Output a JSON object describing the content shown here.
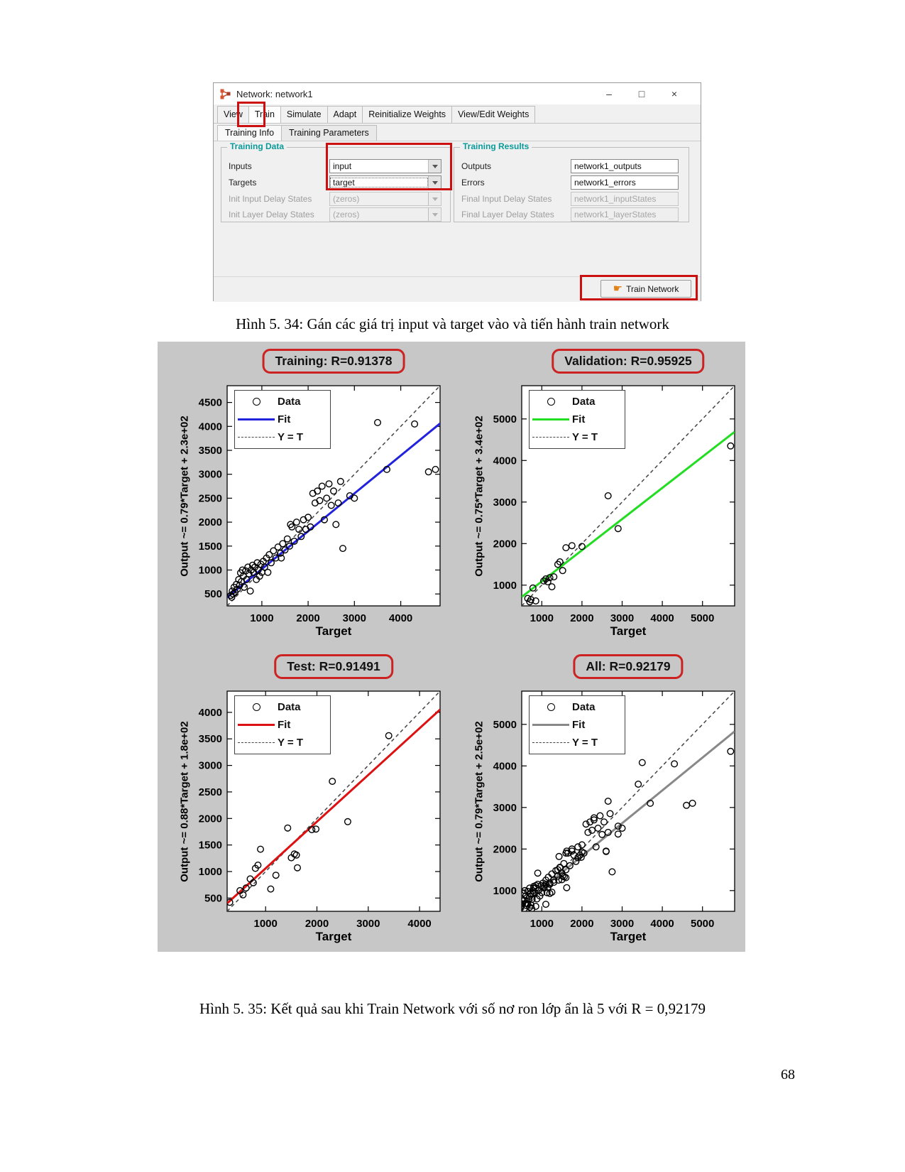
{
  "window": {
    "title": "Network: network1",
    "controls": {
      "minimize": "–",
      "maximize": "□",
      "close": "×"
    },
    "tabs": [
      "View",
      "Train",
      "Simulate",
      "Adapt",
      "Reinitialize Weights",
      "View/Edit Weights"
    ],
    "subtabs": [
      "Training Info",
      "Training Parameters"
    ],
    "training_data": {
      "title": "Training Data",
      "rows": [
        {
          "label": "Inputs",
          "value": "input"
        },
        {
          "label": "Targets",
          "value": "target"
        },
        {
          "label": "Init Input Delay States",
          "value": "(zeros)"
        },
        {
          "label": "Init Layer Delay States",
          "value": "(zeros)"
        }
      ]
    },
    "training_results": {
      "title": "Training Results",
      "rows": [
        {
          "label": "Outputs",
          "value": "network1_outputs"
        },
        {
          "label": "Errors",
          "value": "network1_errors"
        },
        {
          "label": "Final Input Delay States",
          "value": "network1_inputStates"
        },
        {
          "label": "Final Layer Delay States",
          "value": "network1_layerStates"
        }
      ]
    },
    "train_button_label": "Train Network"
  },
  "captions": {
    "figure34": "Hình 5. 34: Gán các giá trị input và target vào và tiến hành train network",
    "figure35": "Hình 5. 35: Kết quả sau khi Train Network với số nơ ron lớp ẩn là 5 với R = 0,92179"
  },
  "page_number": "68",
  "chart_data": [
    {
      "type": "scatter",
      "title": "Training: R=0.91378",
      "xlabel": "Target",
      "ylabel": "Output ~= 0.79*Target + 2.3e+02",
      "legend": [
        "Data",
        "Fit",
        "Y = T"
      ],
      "fit": {
        "slope": 0.79,
        "intercept": 230,
        "color": "#2222dd"
      },
      "xlim": [
        250,
        4850
      ],
      "ylim": [
        250,
        4850
      ],
      "xticks": [
        1000,
        2000,
        3000,
        4000
      ],
      "yticks": [
        500,
        1000,
        1500,
        2000,
        2500,
        3000,
        3500,
        4000,
        4500
      ],
      "points": [
        [
          330,
          470
        ],
        [
          350,
          430
        ],
        [
          360,
          560
        ],
        [
          380,
          500
        ],
        [
          400,
          640
        ],
        [
          420,
          540
        ],
        [
          450,
          700
        ],
        [
          470,
          600
        ],
        [
          500,
          800
        ],
        [
          520,
          680
        ],
        [
          540,
          940
        ],
        [
          560,
          760
        ],
        [
          580,
          1000
        ],
        [
          600,
          870
        ],
        [
          620,
          640
        ],
        [
          650,
          980
        ],
        [
          670,
          800
        ],
        [
          700,
          1060
        ],
        [
          720,
          920
        ],
        [
          750,
          560
        ],
        [
          770,
          1000
        ],
        [
          800,
          1100
        ],
        [
          820,
          950
        ],
        [
          850,
          1060
        ],
        [
          880,
          800
        ],
        [
          900,
          1150
        ],
        [
          920,
          1000
        ],
        [
          950,
          870
        ],
        [
          980,
          1120
        ],
        [
          1000,
          950
        ],
        [
          1030,
          1180
        ],
        [
          1060,
          1060
        ],
        [
          1100,
          1250
        ],
        [
          1130,
          950
        ],
        [
          1160,
          1320
        ],
        [
          1200,
          1150
        ],
        [
          1250,
          1400
        ],
        [
          1300,
          1250
        ],
        [
          1350,
          1480
        ],
        [
          1400,
          1350
        ],
        [
          1420,
          1250
        ],
        [
          1450,
          1550
        ],
        [
          1500,
          1420
        ],
        [
          1550,
          1650
        ],
        [
          1600,
          1500
        ],
        [
          1620,
          1950
        ],
        [
          1650,
          1900
        ],
        [
          1700,
          1600
        ],
        [
          1750,
          2000
        ],
        [
          1800,
          1850
        ],
        [
          1850,
          1700
        ],
        [
          1900,
          2050
        ],
        [
          1950,
          1850
        ],
        [
          2000,
          2100
        ],
        [
          2050,
          1900
        ],
        [
          2100,
          2600
        ],
        [
          2150,
          2400
        ],
        [
          2200,
          2650
        ],
        [
          2250,
          2450
        ],
        [
          2300,
          2750
        ],
        [
          2350,
          2050
        ],
        [
          2400,
          2500
        ],
        [
          2450,
          2800
        ],
        [
          2500,
          2350
        ],
        [
          2550,
          2650
        ],
        [
          2600,
          1950
        ],
        [
          2650,
          2400
        ],
        [
          2700,
          2850
        ],
        [
          2750,
          1450
        ],
        [
          2900,
          2550
        ],
        [
          3000,
          2500
        ],
        [
          3500,
          4080
        ],
        [
          3700,
          3100
        ],
        [
          4300,
          4050
        ],
        [
          4600,
          3050
        ],
        [
          4750,
          3100
        ]
      ]
    },
    {
      "type": "scatter",
      "title": "Validation: R=0.95925",
      "xlabel": "Target",
      "ylabel": "Output ~= 0.75*Target + 3.4e+02",
      "legend": [
        "Data",
        "Fit",
        "Y = T"
      ],
      "fit": {
        "slope": 0.75,
        "intercept": 340,
        "color": "#22dd22"
      },
      "xlim": [
        500,
        5800
      ],
      "ylim": [
        500,
        5800
      ],
      "xticks": [
        1000,
        2000,
        3000,
        4000,
        5000
      ],
      "yticks": [
        1000,
        2000,
        3000,
        4000,
        5000
      ],
      "points": [
        [
          650,
          680
        ],
        [
          700,
          600
        ],
        [
          730,
          650
        ],
        [
          780,
          930
        ],
        [
          850,
          620
        ],
        [
          1050,
          1100
        ],
        [
          1100,
          1150
        ],
        [
          1150,
          1080
        ],
        [
          1200,
          1180
        ],
        [
          1250,
          960
        ],
        [
          1300,
          1200
        ],
        [
          1400,
          1500
        ],
        [
          1450,
          1560
        ],
        [
          1520,
          1350
        ],
        [
          1600,
          1900
        ],
        [
          1750,
          1950
        ],
        [
          2000,
          1930
        ],
        [
          2650,
          3150
        ],
        [
          2900,
          2360
        ],
        [
          5700,
          4350
        ]
      ]
    },
    {
      "type": "scatter",
      "title": "Test: R=0.91491",
      "xlabel": "Target",
      "ylabel": "Output ~= 0.88*Target + 1.8e+02",
      "legend": [
        "Data",
        "Fit",
        "Y = T"
      ],
      "fit": {
        "slope": 0.88,
        "intercept": 180,
        "color": "#dd1111"
      },
      "xlim": [
        250,
        4400
      ],
      "ylim": [
        250,
        4400
      ],
      "xticks": [
        1000,
        2000,
        3000,
        4000
      ],
      "yticks": [
        500,
        1000,
        1500,
        2000,
        2500,
        3000,
        3500,
        4000
      ],
      "points": [
        [
          300,
          420
        ],
        [
          500,
          640
        ],
        [
          560,
          560
        ],
        [
          620,
          690
        ],
        [
          700,
          860
        ],
        [
          760,
          790
        ],
        [
          800,
          1060
        ],
        [
          850,
          1120
        ],
        [
          900,
          1420
        ],
        [
          1100,
          670
        ],
        [
          1200,
          930
        ],
        [
          1430,
          1820
        ],
        [
          1500,
          1260
        ],
        [
          1560,
          1330
        ],
        [
          1600,
          1310
        ],
        [
          1620,
          1070
        ],
        [
          1900,
          1790
        ],
        [
          1980,
          1800
        ],
        [
          2300,
          2700
        ],
        [
          2600,
          1940
        ],
        [
          3400,
          3560
        ]
      ]
    },
    {
      "type": "scatter",
      "title": "All: R=0.92179",
      "xlabel": "Target",
      "ylabel": "Output ~= 0.79*Target + 2.5e+02",
      "legend": [
        "Data",
        "Fit",
        "Y = T"
      ],
      "fit": {
        "slope": 0.79,
        "intercept": 250,
        "color": "#888888"
      },
      "xlim": [
        500,
        5800
      ],
      "ylim": [
        500,
        5800
      ],
      "xticks": [
        1000,
        2000,
        3000,
        4000,
        5000
      ],
      "yticks": [
        1000,
        2000,
        3000,
        4000,
        5000
      ],
      "points": [
        [
          330,
          470
        ],
        [
          350,
          430
        ],
        [
          360,
          560
        ],
        [
          380,
          500
        ],
        [
          400,
          640
        ],
        [
          420,
          540
        ],
        [
          450,
          700
        ],
        [
          470,
          600
        ],
        [
          500,
          800
        ],
        [
          520,
          680
        ],
        [
          540,
          940
        ],
        [
          560,
          760
        ],
        [
          580,
          1000
        ],
        [
          600,
          870
        ],
        [
          620,
          640
        ],
        [
          650,
          980
        ],
        [
          670,
          800
        ],
        [
          700,
          1060
        ],
        [
          720,
          920
        ],
        [
          750,
          560
        ],
        [
          770,
          1000
        ],
        [
          800,
          1100
        ],
        [
          820,
          950
        ],
        [
          850,
          1060
        ],
        [
          880,
          800
        ],
        [
          900,
          1150
        ],
        [
          920,
          1000
        ],
        [
          950,
          870
        ],
        [
          980,
          1120
        ],
        [
          1000,
          950
        ],
        [
          1030,
          1180
        ],
        [
          1060,
          1060
        ],
        [
          1100,
          1250
        ],
        [
          1130,
          950
        ],
        [
          1160,
          1320
        ],
        [
          1200,
          1150
        ],
        [
          1250,
          1400
        ],
        [
          1300,
          1250
        ],
        [
          1350,
          1480
        ],
        [
          1400,
          1350
        ],
        [
          1420,
          1250
        ],
        [
          1450,
          1550
        ],
        [
          1500,
          1420
        ],
        [
          1550,
          1650
        ],
        [
          1600,
          1500
        ],
        [
          1620,
          1950
        ],
        [
          1650,
          1900
        ],
        [
          1700,
          1600
        ],
        [
          1750,
          2000
        ],
        [
          1800,
          1850
        ],
        [
          1850,
          1700
        ],
        [
          1900,
          2050
        ],
        [
          1950,
          1850
        ],
        [
          2000,
          2100
        ],
        [
          2050,
          1900
        ],
        [
          2100,
          2600
        ],
        [
          2150,
          2400
        ],
        [
          2200,
          2650
        ],
        [
          2250,
          2450
        ],
        [
          2300,
          2750
        ],
        [
          2350,
          2050
        ],
        [
          2400,
          2500
        ],
        [
          2450,
          2800
        ],
        [
          2500,
          2350
        ],
        [
          2550,
          2650
        ],
        [
          2600,
          1950
        ],
        [
          2650,
          2400
        ],
        [
          2700,
          2850
        ],
        [
          2750,
          1450
        ],
        [
          2900,
          2550
        ],
        [
          3000,
          2500
        ],
        [
          3500,
          4080
        ],
        [
          3700,
          3100
        ],
        [
          4300,
          4050
        ],
        [
          4600,
          3050
        ],
        [
          4750,
          3100
        ],
        [
          650,
          680
        ],
        [
          700,
          600
        ],
        [
          730,
          650
        ],
        [
          780,
          930
        ],
        [
          850,
          620
        ],
        [
          1050,
          1100
        ],
        [
          1100,
          1150
        ],
        [
          1150,
          1080
        ],
        [
          1200,
          1180
        ],
        [
          1250,
          960
        ],
        [
          1300,
          1200
        ],
        [
          1400,
          1500
        ],
        [
          1450,
          1560
        ],
        [
          1520,
          1350
        ],
        [
          1600,
          1900
        ],
        [
          1750,
          1950
        ],
        [
          2000,
          1930
        ],
        [
          2650,
          3150
        ],
        [
          2900,
          2360
        ],
        [
          5700,
          4350
        ],
        [
          300,
          420
        ],
        [
          500,
          640
        ],
        [
          560,
          560
        ],
        [
          620,
          690
        ],
        [
          700,
          860
        ],
        [
          760,
          790
        ],
        [
          800,
          1060
        ],
        [
          850,
          1120
        ],
        [
          900,
          1420
        ],
        [
          1100,
          670
        ],
        [
          1200,
          930
        ],
        [
          1430,
          1820
        ],
        [
          1500,
          1260
        ],
        [
          1560,
          1330
        ],
        [
          1600,
          1310
        ],
        [
          1620,
          1070
        ],
        [
          1900,
          1790
        ],
        [
          1980,
          1800
        ],
        [
          2300,
          2700
        ],
        [
          2600,
          1940
        ],
        [
          3400,
          3560
        ]
      ]
    }
  ]
}
